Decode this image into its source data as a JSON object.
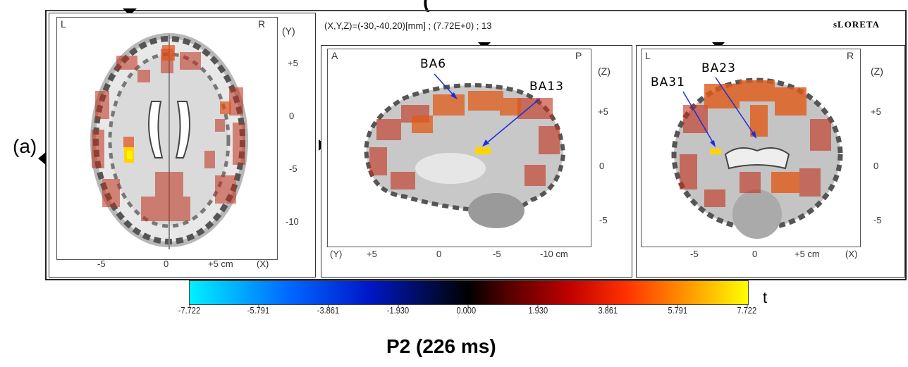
{
  "top_title_partial": "(",
  "panel_label": "(a)",
  "coords_text": "(X,Y,Z)=(-30,-40,20)[mm]  ;  (7.72E+0)  ;  13",
  "method_label": "sLORETA",
  "axial": {
    "corner_left": "L",
    "corner_right": "R",
    "axis_y": "(Y)",
    "y_ticks": [
      "+5",
      "0",
      "-5",
      "-10"
    ],
    "x_ticks": [
      "-5",
      "0",
      "+5 cm",
      "(X)"
    ]
  },
  "sagittal": {
    "corner_left": "A",
    "corner_right": "P",
    "axis_z": "(Z)",
    "z_ticks": [
      "+5",
      "0",
      "-5"
    ],
    "x_axis_label": "(Y)",
    "x_ticks": [
      "+5",
      "0",
      "-5",
      "-10 cm"
    ],
    "annotations": [
      "BA6",
      "BA13"
    ]
  },
  "coronal": {
    "corner_left": "L",
    "corner_right": "R",
    "axis_z": "(Z)",
    "z_ticks": [
      "+5",
      "0",
      "-5"
    ],
    "x_ticks": [
      "-5",
      "0",
      "+5 cm",
      "(X)"
    ],
    "annotations": [
      "BA31",
      "BA23"
    ]
  },
  "colorbar": {
    "ticks": [
      "-7.722",
      "-5.791",
      "-3.861",
      "-1.930",
      "0.000",
      "1.930",
      "3.861",
      "5.791",
      "7.722"
    ],
    "unit": "t"
  },
  "caption": "P2 (226 ms)"
}
